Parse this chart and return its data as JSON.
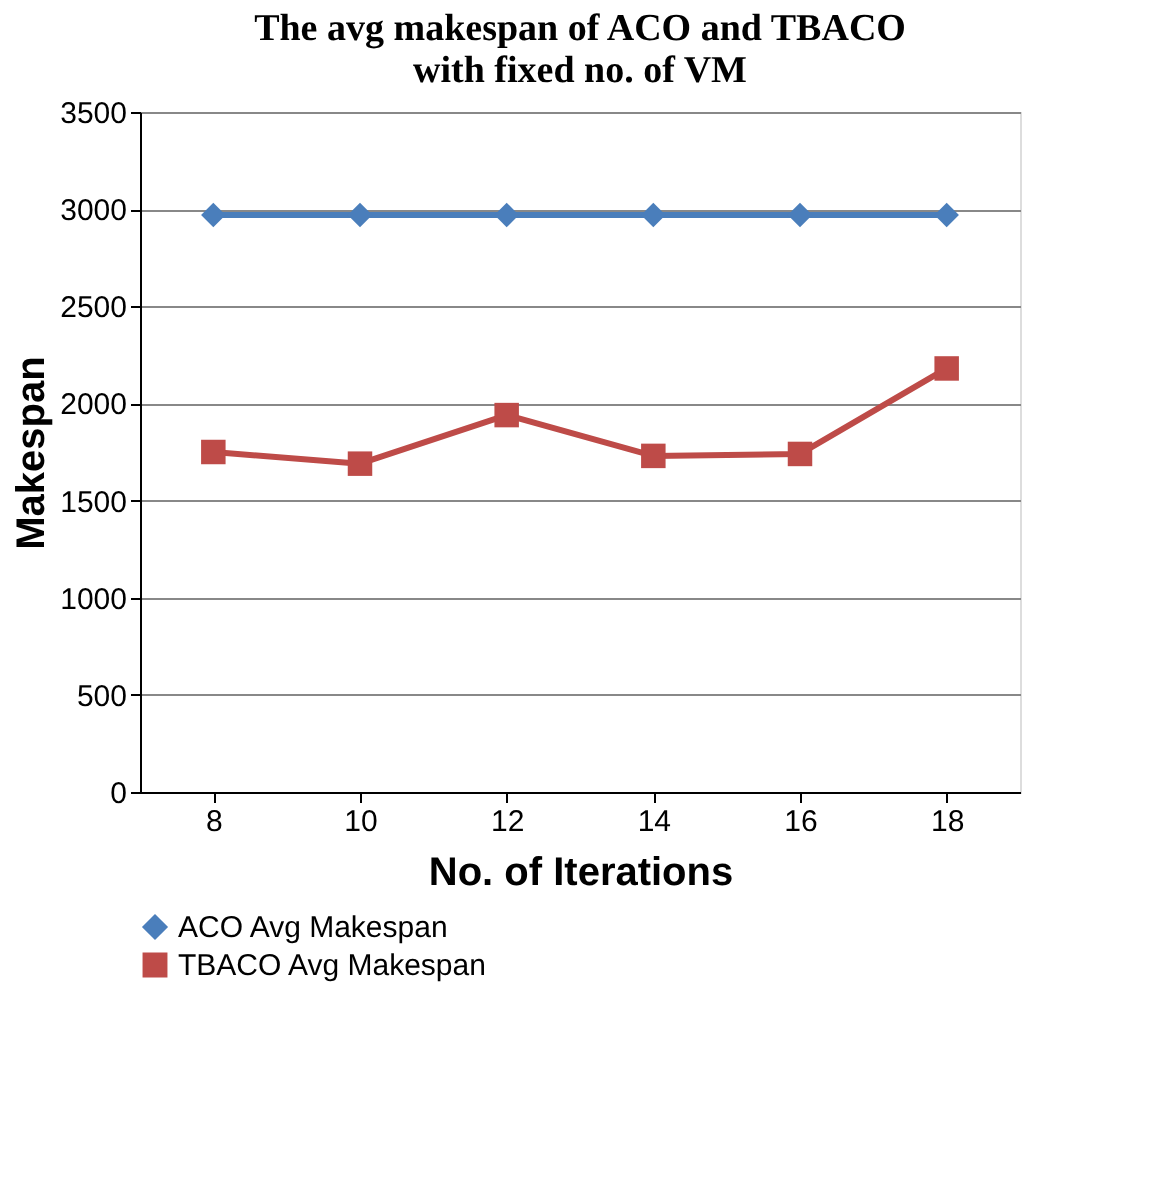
{
  "chart_data": {
    "type": "line",
    "title": [
      "The avg makespan of ACO and TBACO",
      "with fixed no. of VM"
    ],
    "xlabel": "No. of Iterations",
    "ylabel": "Makespan",
    "categories": [
      "8",
      "10",
      "12",
      "14",
      "16",
      "18"
    ],
    "series": [
      {
        "name": "ACO Avg Makespan",
        "color": "#4a7ebb",
        "marker": "diamond",
        "values": [
          2970,
          2970,
          2970,
          2970,
          2970,
          2970
        ]
      },
      {
        "name": "TBACO Avg Makespan",
        "color": "#be4b48",
        "marker": "square",
        "values": [
          1750,
          1690,
          1940,
          1730,
          1740,
          2180
        ]
      }
    ],
    "ylim": [
      0,
      3500
    ],
    "yticks": [
      0,
      500,
      1000,
      1500,
      2000,
      2500,
      3000,
      3500
    ],
    "grid": "y",
    "legend": "bottom",
    "line_style": "solid"
  }
}
